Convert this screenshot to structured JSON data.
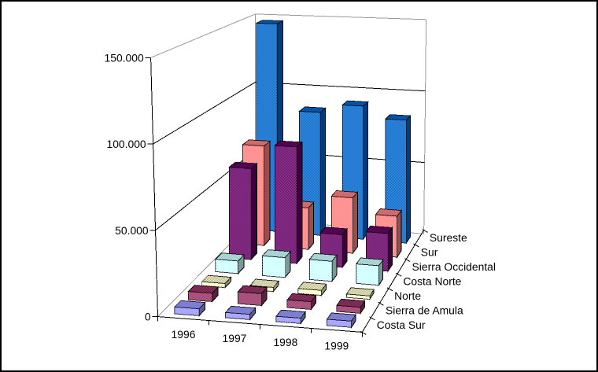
{
  "window": {
    "background": "#FFFFFF",
    "border_color": "#000000"
  },
  "chart_data": {
    "type": "bar",
    "projection": "3d-perspective",
    "title": "",
    "categories": [
      "1996",
      "1997",
      "1998",
      "1999"
    ],
    "series_order": "front-to-back",
    "series": [
      {
        "name": "Costa Sur",
        "color": "#9999FF",
        "values": [
          4000,
          3000,
          3000,
          3500
        ]
      },
      {
        "name": "Sierra de Amula",
        "color": "#993366",
        "values": [
          5000,
          7000,
          4500,
          3500
        ]
      },
      {
        "name": "Norte",
        "color": "#FFFFCC",
        "values": [
          2500,
          2500,
          3000,
          2000
        ]
      },
      {
        "name": "Costa Norte",
        "color": "#CCFFFF",
        "values": [
          8000,
          12500,
          12500,
          12000
        ]
      },
      {
        "name": "Sierra Occidental",
        "color": "#660066",
        "values": [
          60000,
          76000,
          21000,
          24000
        ]
      },
      {
        "name": "Sur",
        "color": "#FF8080",
        "values": [
          68000,
          28000,
          37000,
          27000
        ]
      },
      {
        "name": "Sureste",
        "color": "#0066CC",
        "values": [
          147000,
          86000,
          92000,
          84000
        ]
      }
    ],
    "value_axis": {
      "min": 0,
      "max": 150000,
      "step": 50000,
      "tick_labels": [
        "0",
        "50.000",
        "100.000",
        "150.000"
      ]
    },
    "series_axis_labels_back_to_front": [
      "Sureste",
      "Sur",
      "Sierra Occidental",
      "Costa Norte",
      "Norte",
      "Sierra de Amula",
      "Costa Sur"
    ],
    "gridlines": true,
    "legend_position": "none-series-labeled-on-depth-axis",
    "gridline_color": "#000000",
    "wall_edge_color": "#999999"
  }
}
